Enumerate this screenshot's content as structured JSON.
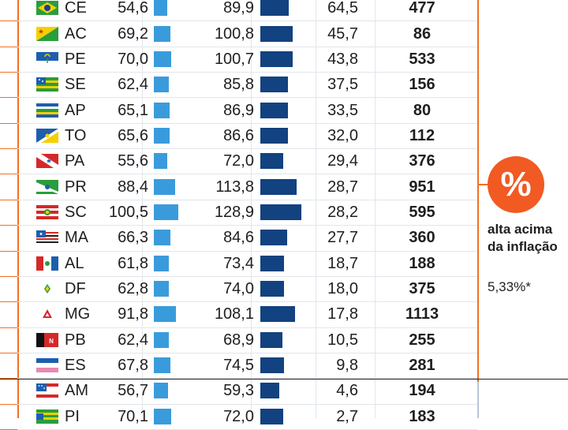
{
  "chart_data": {
    "type": "table",
    "columns": [
      "state",
      "value_a",
      "value_b",
      "change_pct",
      "count"
    ],
    "rows": [
      {
        "state": "CE",
        "a": "54,6",
        "av": 54.6,
        "b": "89,9",
        "bv": 89.9,
        "pct": "64,5",
        "n": "477",
        "flag": "br"
      },
      {
        "state": "AC",
        "a": "69,2",
        "av": 69.2,
        "b": "100,8",
        "bv": 100.8,
        "pct": "45,7",
        "n": "86",
        "flag": "ac"
      },
      {
        "state": "PE",
        "a": "70,0",
        "av": 70.0,
        "b": "100,7",
        "bv": 100.7,
        "pct": "43,8",
        "n": "533",
        "flag": "pe"
      },
      {
        "state": "SE",
        "a": "62,4",
        "av": 62.4,
        "b": "85,8",
        "bv": 85.8,
        "pct": "37,5",
        "n": "156",
        "flag": "se"
      },
      {
        "state": "AP",
        "a": "65,1",
        "av": 65.1,
        "b": "86,9",
        "bv": 86.9,
        "pct": "33,5",
        "n": "80",
        "flag": "ap"
      },
      {
        "state": "TO",
        "a": "65,6",
        "av": 65.6,
        "b": "86,6",
        "bv": 86.6,
        "pct": "32,0",
        "n": "112",
        "flag": "to"
      },
      {
        "state": "PA",
        "a": "55,6",
        "av": 55.6,
        "b": "72,0",
        "bv": 72.0,
        "pct": "29,4",
        "n": "376",
        "flag": "pa"
      },
      {
        "state": "PR",
        "a": "88,4",
        "av": 88.4,
        "b": "113,8",
        "bv": 113.8,
        "pct": "28,7",
        "n": "951",
        "flag": "pr"
      },
      {
        "state": "SC",
        "a": "100,5",
        "av": 100.5,
        "b": "128,9",
        "bv": 128.9,
        "pct": "28,2",
        "n": "595",
        "flag": "sc"
      },
      {
        "state": "MA",
        "a": "66,3",
        "av": 66.3,
        "b": "84,6",
        "bv": 84.6,
        "pct": "27,7",
        "n": "360",
        "flag": "ma"
      },
      {
        "state": "AL",
        "a": "61,8",
        "av": 61.8,
        "b": "73,4",
        "bv": 73.4,
        "pct": "18,7",
        "n": "188",
        "flag": "al"
      },
      {
        "state": "DF",
        "a": "62,8",
        "av": 62.8,
        "b": "74,0",
        "bv": 74.0,
        "pct": "18,0",
        "n": "375",
        "flag": "df"
      },
      {
        "state": "MG",
        "a": "91,8",
        "av": 91.8,
        "b": "108,1",
        "bv": 108.1,
        "pct": "17,8",
        "n": "1113",
        "flag": "mg"
      },
      {
        "state": "PB",
        "a": "62,4",
        "av": 62.4,
        "b": "68,9",
        "bv": 68.9,
        "pct": "10,5",
        "n": "255",
        "flag": "pb"
      },
      {
        "state": "ES",
        "a": "67,8",
        "av": 67.8,
        "b": "74,5",
        "bv": 74.5,
        "pct": "9,8",
        "n": "281",
        "flag": "es"
      },
      {
        "state": "AM",
        "a": "56,7",
        "av": 56.7,
        "b": "59,3",
        "bv": 59.3,
        "pct": "4,6",
        "n": "194",
        "flag": "am"
      },
      {
        "state": "PI",
        "a": "70,1",
        "av": 70.1,
        "b": "72,0",
        "bv": 72.0,
        "pct": "2,7",
        "n": "183",
        "flag": "pi"
      }
    ],
    "bar_scale_max": 128.9
  },
  "callout": {
    "symbol": "%",
    "text": "alta acima da inflação",
    "value": "5,33%*"
  },
  "colors": {
    "accent": "#f37021",
    "bar_a": "#3a9bdc",
    "bar_b": "#12427f"
  }
}
